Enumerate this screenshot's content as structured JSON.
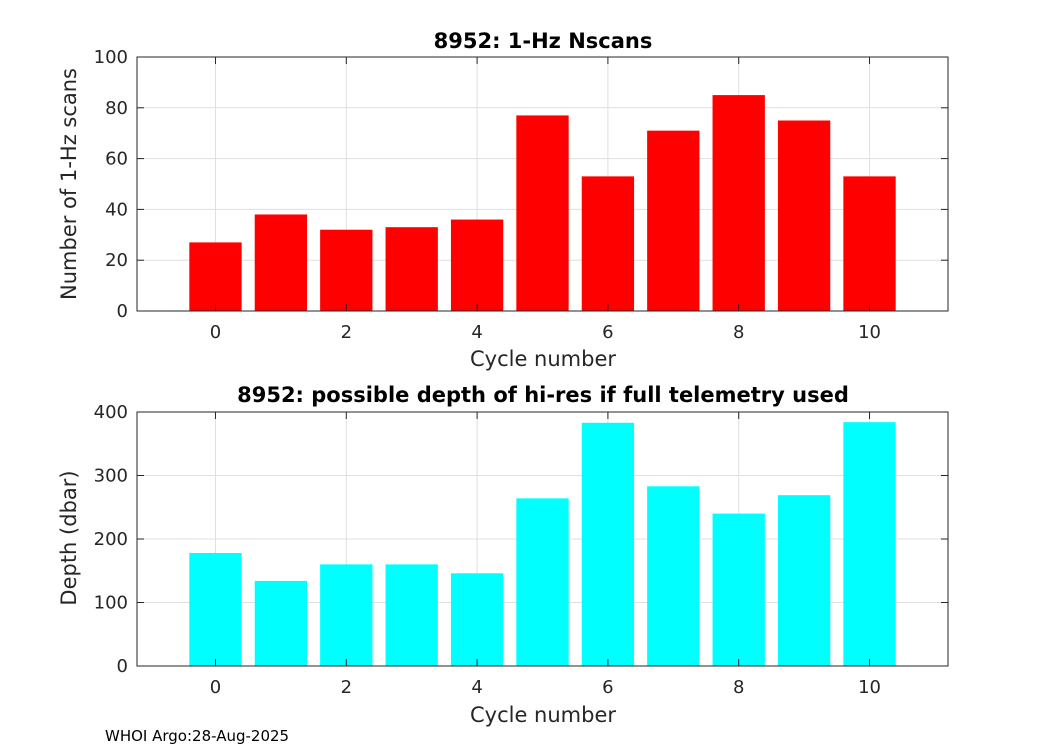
{
  "footer": "WHOI Argo:28-Aug-2025",
  "chart_data": [
    {
      "type": "bar",
      "title": "8952: 1-Hz Nscans",
      "xlabel": "Cycle number",
      "ylabel": "Number of 1-Hz scans",
      "categories": [
        0,
        1,
        2,
        3,
        4,
        5,
        6,
        7,
        8,
        9,
        10
      ],
      "values": [
        27,
        38,
        32,
        33,
        36,
        77,
        53,
        71,
        85,
        75,
        53
      ],
      "xlim": [
        -1.2,
        11.2
      ],
      "ylim": [
        0,
        100
      ],
      "xticks": [
        0,
        2,
        4,
        6,
        8,
        10
      ],
      "yticks": [
        0,
        20,
        40,
        60,
        80,
        100
      ],
      "bar_color": "#ff0000",
      "grid": true
    },
    {
      "type": "bar",
      "title": "8952: possible depth of hi-res if full telemetry used",
      "xlabel": "Cycle number",
      "ylabel": "Depth (dbar)",
      "categories": [
        0,
        1,
        2,
        3,
        4,
        5,
        6,
        7,
        8,
        9,
        10
      ],
      "values": [
        178,
        134,
        160,
        160,
        146,
        264,
        383,
        283,
        240,
        269,
        384
      ],
      "xlim": [
        -1.2,
        11.2
      ],
      "ylim": [
        0,
        400
      ],
      "xticks": [
        0,
        2,
        4,
        6,
        8,
        10
      ],
      "yticks": [
        0,
        100,
        200,
        300,
        400
      ],
      "bar_color": "#00ffff",
      "grid": true
    }
  ]
}
